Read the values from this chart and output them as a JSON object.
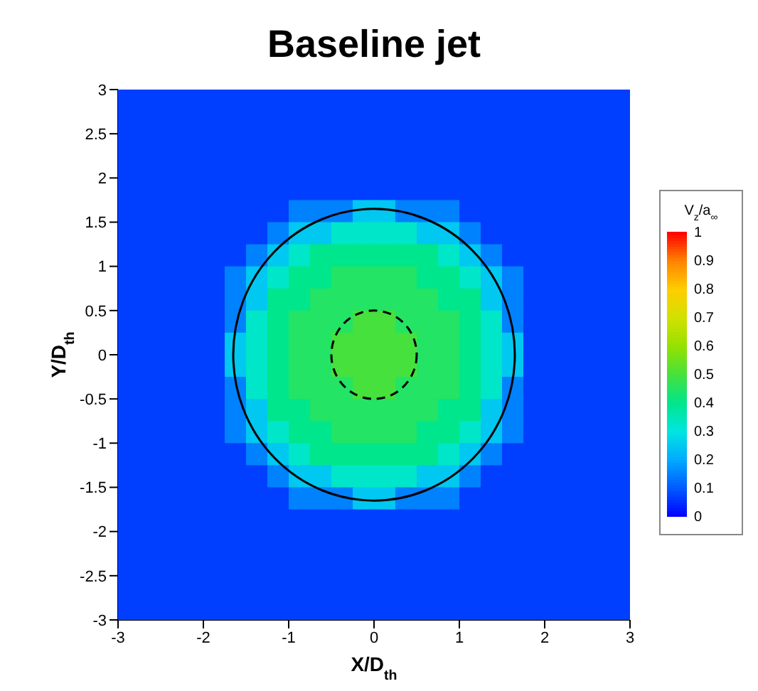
{
  "chart_data": {
    "type": "heatmap",
    "title": "Baseline jet",
    "xlabel": "X/D$_{th}$",
    "ylabel": "Y/D$_{th}$",
    "clabel": "V$_{z}$/a$_{∞}$",
    "xlim": [
      -3,
      3
    ],
    "ylim": [
      -3,
      3
    ],
    "xticks": [
      -3,
      -2,
      -1,
      0,
      1,
      2,
      3
    ],
    "yticks": [
      -3,
      -2.5,
      -2,
      -1.5,
      -1,
      -0.5,
      0,
      0.5,
      1,
      1.5,
      2,
      2.5,
      3
    ],
    "clim": [
      0,
      1
    ],
    "cticks": [
      0,
      0.1,
      0.2,
      0.3,
      0.4,
      0.5,
      0.6,
      0.7,
      0.8,
      0.9,
      1
    ],
    "cells": [
      [
        0.07,
        0.07,
        0.07,
        0.07,
        0.07,
        0.07,
        0.07,
        0.07,
        0.07,
        0.07,
        0.07,
        0.07,
        0.07,
        0.07,
        0.07,
        0.07,
        0.07,
        0.07,
        0.07,
        0.07,
        0.07,
        0.07,
        0.07,
        0.07
      ],
      [
        0.07,
        0.07,
        0.07,
        0.07,
        0.07,
        0.07,
        0.07,
        0.07,
        0.07,
        0.07,
        0.07,
        0.07,
        0.07,
        0.07,
        0.07,
        0.07,
        0.07,
        0.07,
        0.07,
        0.07,
        0.07,
        0.07,
        0.07,
        0.07
      ],
      [
        0.07,
        0.07,
        0.07,
        0.07,
        0.07,
        0.07,
        0.07,
        0.07,
        0.07,
        0.07,
        0.07,
        0.07,
        0.07,
        0.07,
        0.07,
        0.07,
        0.07,
        0.07,
        0.07,
        0.07,
        0.07,
        0.07,
        0.07,
        0.07
      ],
      [
        0.07,
        0.07,
        0.07,
        0.07,
        0.07,
        0.07,
        0.07,
        0.07,
        0.07,
        0.07,
        0.07,
        0.07,
        0.07,
        0.07,
        0.07,
        0.07,
        0.07,
        0.07,
        0.07,
        0.07,
        0.07,
        0.07,
        0.07,
        0.07
      ],
      [
        0.07,
        0.07,
        0.07,
        0.07,
        0.07,
        0.07,
        0.07,
        0.07,
        0.07,
        0.07,
        0.07,
        0.07,
        0.07,
        0.07,
        0.07,
        0.07,
        0.07,
        0.07,
        0.07,
        0.07,
        0.07,
        0.07,
        0.07,
        0.07
      ],
      [
        0.07,
        0.07,
        0.07,
        0.07,
        0.07,
        0.07,
        0.07,
        0.07,
        0.15,
        0.15,
        0.15,
        0.25,
        0.25,
        0.15,
        0.15,
        0.15,
        0.07,
        0.07,
        0.07,
        0.07,
        0.07,
        0.07,
        0.07,
        0.07
      ],
      [
        0.07,
        0.07,
        0.07,
        0.07,
        0.07,
        0.07,
        0.07,
        0.15,
        0.25,
        0.25,
        0.33,
        0.33,
        0.33,
        0.33,
        0.25,
        0.25,
        0.15,
        0.07,
        0.07,
        0.07,
        0.07,
        0.07,
        0.07,
        0.07
      ],
      [
        0.07,
        0.07,
        0.07,
        0.07,
        0.07,
        0.07,
        0.15,
        0.25,
        0.33,
        0.4,
        0.4,
        0.4,
        0.4,
        0.4,
        0.4,
        0.33,
        0.25,
        0.15,
        0.07,
        0.07,
        0.07,
        0.07,
        0.07,
        0.07
      ],
      [
        0.07,
        0.07,
        0.07,
        0.07,
        0.07,
        0.15,
        0.25,
        0.33,
        0.4,
        0.4,
        0.45,
        0.45,
        0.45,
        0.45,
        0.4,
        0.4,
        0.33,
        0.25,
        0.15,
        0.07,
        0.07,
        0.07,
        0.07,
        0.07
      ],
      [
        0.07,
        0.07,
        0.07,
        0.07,
        0.07,
        0.15,
        0.25,
        0.4,
        0.4,
        0.45,
        0.45,
        0.45,
        0.45,
        0.45,
        0.45,
        0.4,
        0.4,
        0.25,
        0.15,
        0.07,
        0.07,
        0.07,
        0.07,
        0.07
      ],
      [
        0.07,
        0.07,
        0.07,
        0.07,
        0.07,
        0.15,
        0.33,
        0.4,
        0.45,
        0.45,
        0.45,
        0.5,
        0.5,
        0.45,
        0.45,
        0.45,
        0.4,
        0.33,
        0.15,
        0.07,
        0.07,
        0.07,
        0.07,
        0.07
      ],
      [
        0.07,
        0.07,
        0.07,
        0.07,
        0.07,
        0.25,
        0.33,
        0.4,
        0.45,
        0.45,
        0.5,
        0.5,
        0.5,
        0.5,
        0.45,
        0.45,
        0.4,
        0.33,
        0.25,
        0.07,
        0.07,
        0.07,
        0.07,
        0.07
      ],
      [
        0.07,
        0.07,
        0.07,
        0.07,
        0.07,
        0.25,
        0.33,
        0.4,
        0.45,
        0.45,
        0.5,
        0.5,
        0.5,
        0.5,
        0.45,
        0.45,
        0.4,
        0.33,
        0.25,
        0.07,
        0.07,
        0.07,
        0.07,
        0.07
      ],
      [
        0.07,
        0.07,
        0.07,
        0.07,
        0.07,
        0.15,
        0.33,
        0.4,
        0.45,
        0.45,
        0.45,
        0.5,
        0.5,
        0.45,
        0.45,
        0.45,
        0.4,
        0.33,
        0.15,
        0.07,
        0.07,
        0.07,
        0.07,
        0.07
      ],
      [
        0.07,
        0.07,
        0.07,
        0.07,
        0.07,
        0.15,
        0.25,
        0.4,
        0.4,
        0.45,
        0.45,
        0.45,
        0.45,
        0.45,
        0.45,
        0.4,
        0.4,
        0.25,
        0.15,
        0.07,
        0.07,
        0.07,
        0.07,
        0.07
      ],
      [
        0.07,
        0.07,
        0.07,
        0.07,
        0.07,
        0.15,
        0.25,
        0.33,
        0.4,
        0.4,
        0.45,
        0.45,
        0.45,
        0.45,
        0.4,
        0.4,
        0.33,
        0.25,
        0.15,
        0.07,
        0.07,
        0.07,
        0.07,
        0.07
      ],
      [
        0.07,
        0.07,
        0.07,
        0.07,
        0.07,
        0.07,
        0.15,
        0.25,
        0.33,
        0.4,
        0.4,
        0.4,
        0.4,
        0.4,
        0.4,
        0.33,
        0.25,
        0.15,
        0.07,
        0.07,
        0.07,
        0.07,
        0.07,
        0.07
      ],
      [
        0.07,
        0.07,
        0.07,
        0.07,
        0.07,
        0.07,
        0.07,
        0.15,
        0.25,
        0.25,
        0.33,
        0.33,
        0.33,
        0.33,
        0.25,
        0.25,
        0.15,
        0.07,
        0.07,
        0.07,
        0.07,
        0.07,
        0.07,
        0.07
      ],
      [
        0.07,
        0.07,
        0.07,
        0.07,
        0.07,
        0.07,
        0.07,
        0.07,
        0.15,
        0.15,
        0.15,
        0.25,
        0.25,
        0.15,
        0.15,
        0.15,
        0.07,
        0.07,
        0.07,
        0.07,
        0.07,
        0.07,
        0.07,
        0.07
      ],
      [
        0.07,
        0.07,
        0.07,
        0.07,
        0.07,
        0.07,
        0.07,
        0.07,
        0.07,
        0.07,
        0.07,
        0.07,
        0.07,
        0.07,
        0.07,
        0.07,
        0.07,
        0.07,
        0.07,
        0.07,
        0.07,
        0.07,
        0.07,
        0.07
      ],
      [
        0.07,
        0.07,
        0.07,
        0.07,
        0.07,
        0.07,
        0.07,
        0.07,
        0.07,
        0.07,
        0.07,
        0.07,
        0.07,
        0.07,
        0.07,
        0.07,
        0.07,
        0.07,
        0.07,
        0.07,
        0.07,
        0.07,
        0.07,
        0.07
      ],
      [
        0.07,
        0.07,
        0.07,
        0.07,
        0.07,
        0.07,
        0.07,
        0.07,
        0.07,
        0.07,
        0.07,
        0.07,
        0.07,
        0.07,
        0.07,
        0.07,
        0.07,
        0.07,
        0.07,
        0.07,
        0.07,
        0.07,
        0.07,
        0.07
      ],
      [
        0.07,
        0.07,
        0.07,
        0.07,
        0.07,
        0.07,
        0.07,
        0.07,
        0.07,
        0.07,
        0.07,
        0.07,
        0.07,
        0.07,
        0.07,
        0.07,
        0.07,
        0.07,
        0.07,
        0.07,
        0.07,
        0.07,
        0.07,
        0.07
      ],
      [
        0.07,
        0.07,
        0.07,
        0.07,
        0.07,
        0.07,
        0.07,
        0.07,
        0.07,
        0.07,
        0.07,
        0.07,
        0.07,
        0.07,
        0.07,
        0.07,
        0.07,
        0.07,
        0.07,
        0.07,
        0.07,
        0.07,
        0.07,
        0.07
      ]
    ]
  }
}
